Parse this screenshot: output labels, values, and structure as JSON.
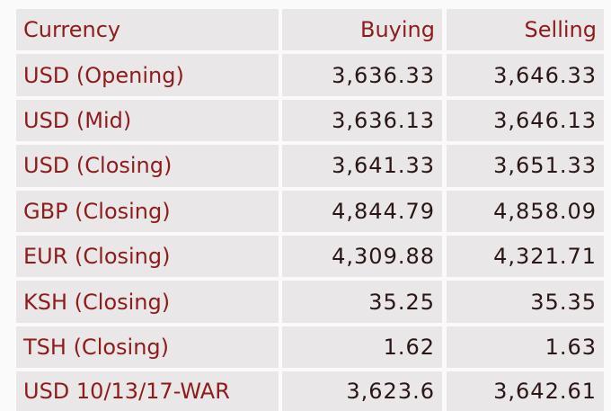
{
  "table": {
    "header": [
      "Currency",
      "Buying",
      "Selling"
    ],
    "rows": [
      [
        "USD (Opening)",
        "3,636.33",
        "3,646.33"
      ],
      [
        "USD (Mid)",
        "3,636.13",
        "3,646.13"
      ],
      [
        "USD (Closing)",
        "3,641.33",
        "3,651.33"
      ],
      [
        "GBP (Closing)",
        "4,844.79",
        "4,858.09"
      ],
      [
        "EUR (Closing)",
        "4,309.88",
        "4,321.71"
      ],
      [
        "KSH (Closing)",
        "35.25",
        "35.35"
      ],
      [
        "TSH (Closing)",
        "1.62",
        "1.63"
      ],
      [
        "USD 10/13/17-WAR",
        "3,623.6",
        "3,642.61"
      ]
    ]
  }
}
